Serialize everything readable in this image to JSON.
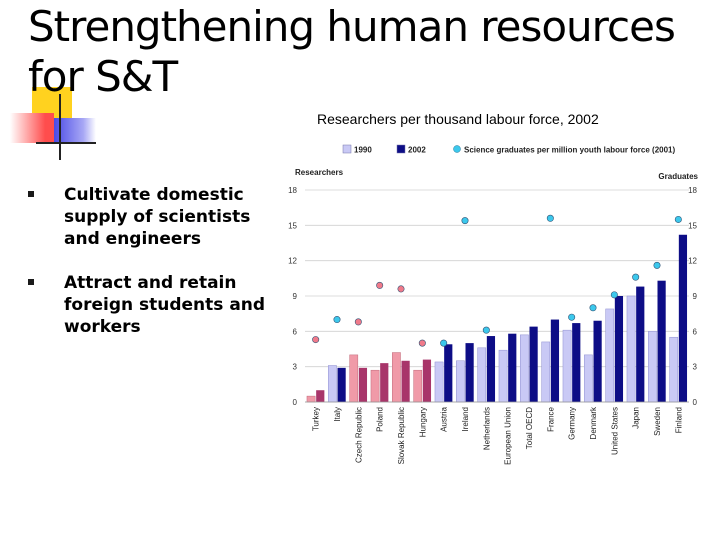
{
  "slide": {
    "title": "Strengthening human resources for S&T",
    "subtitle_bold": "Researchers",
    "subtitle_rest": " per thousand labour force, 2002",
    "bullets": [
      "Cultivate domestic supply of scientists and engineers",
      "Attract and retain foreign students and workers"
    ]
  },
  "chart_data": {
    "type": "bar",
    "title": "",
    "ylabel_left": "Researchers",
    "ylabel_right": "Graduates",
    "ylim": [
      0,
      18
    ],
    "yticks": [
      0,
      3,
      6,
      9,
      12,
      15,
      18
    ],
    "grid": true,
    "legend_placement": "top",
    "categories": [
      "Turkey",
      "Italy",
      "Czech Republic",
      "Poland",
      "Slovak Republic",
      "Hungary",
      "Austria",
      "Ireland",
      "Netherlands",
      "European Union",
      "Total OECD",
      "France",
      "Germany",
      "Denmark",
      "United States",
      "Japan",
      "Sweden",
      "Finland"
    ],
    "series": [
      {
        "name": "1990",
        "values": [
          0.5,
          3.1,
          4.0,
          2.7,
          4.2,
          2.7,
          3.4,
          3.5,
          4.6,
          4.4,
          5.7,
          5.1,
          6.1,
          4.0,
          7.9,
          9.0,
          6.0,
          5.5
        ]
      },
      {
        "name": "2002",
        "values": [
          1.0,
          2.9,
          2.9,
          3.3,
          3.5,
          3.6,
          4.9,
          5.0,
          5.6,
          5.8,
          6.4,
          7.0,
          6.7,
          6.9,
          9.0,
          9.8,
          10.3,
          14.2
        ]
      },
      {
        "name": "Science graduates per million youth labour force (2001)",
        "values": [
          5.3,
          7.0,
          6.8,
          9.9,
          9.6,
          5.0,
          5.0,
          15.4,
          6.1,
          null,
          null,
          15.6,
          7.2,
          8.0,
          9.1,
          10.6,
          11.6,
          15.5
        ]
      }
    ],
    "colors": {
      "bar_1990_normal": "#c9c9f5",
      "bar_2002_normal": "#0d0d86",
      "bar_1990_pink": "#f09aa8",
      "bar_2002_pink": "#a8356a",
      "dot_cyan": "#3cc8ec",
      "dot_pink": "#f07a8a",
      "dot_navy": "#0d0d86",
      "grid": "#d0d0d0"
    },
    "pink_categories": [
      "Turkey",
      "Czech Republic",
      "Poland",
      "Slovak Republic",
      "Hungary"
    ],
    "navy_dot_categories": [
      "European Union",
      "Total OECD"
    ]
  }
}
